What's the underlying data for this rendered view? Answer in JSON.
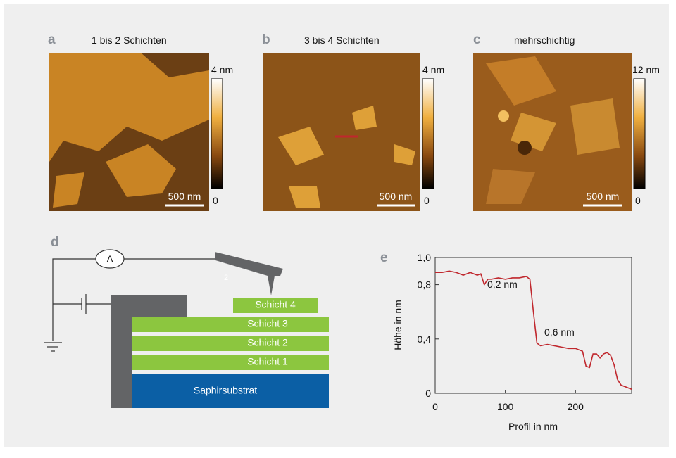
{
  "panels": [
    {
      "label": "a",
      "title": "1 bis 2 Schichten",
      "colorbar_max": "4 nm",
      "colorbar_min": "0",
      "scale_bar": "500 nm"
    },
    {
      "label": "b",
      "title": "3 bis 4 Schichten",
      "colorbar_max": "4 nm",
      "colorbar_min": "0",
      "scale_bar": "500 nm"
    },
    {
      "label": "c",
      "title": "mehrschichtig",
      "colorbar_max": "12 nm",
      "colorbar_min": "0",
      "scale_bar": "500 nm"
    }
  ],
  "diagram": {
    "label": "d",
    "ammeter": "A",
    "tip_label": "2",
    "layers": [
      "Schicht 4",
      "Schicht 3",
      "Schicht 2",
      "Schicht 1"
    ],
    "substrate": "Saphirsubstrat"
  },
  "chart_data": {
    "type": "line",
    "label": "e",
    "xlabel": "Profil in nm",
    "ylabel": "Höhe in nm",
    "x": [
      0,
      10,
      20,
      30,
      40,
      50,
      60,
      65,
      70,
      75,
      80,
      90,
      100,
      110,
      120,
      130,
      135,
      140,
      145,
      150,
      160,
      170,
      180,
      190,
      200,
      210,
      215,
      220,
      225,
      230,
      235,
      240,
      245,
      250,
      255,
      260,
      265,
      270,
      280
    ],
    "series": [
      {
        "color": "#c0272d",
        "values": [
          0.89,
          0.89,
          0.9,
          0.89,
          0.87,
          0.89,
          0.87,
          0.88,
          0.8,
          0.84,
          0.84,
          0.85,
          0.84,
          0.85,
          0.85,
          0.86,
          0.84,
          0.6,
          0.37,
          0.35,
          0.36,
          0.35,
          0.34,
          0.33,
          0.33,
          0.31,
          0.2,
          0.19,
          0.29,
          0.29,
          0.26,
          0.29,
          0.3,
          0.28,
          0.21,
          0.1,
          0.06,
          0.05,
          0.03
        ]
      }
    ],
    "xlim": [
      0,
      280
    ],
    "ylim": [
      0,
      1
    ],
    "xticks": [
      0,
      100,
      200
    ],
    "yticks": [
      {
        "value": 1,
        "label": "1,0"
      },
      {
        "value": 0.8,
        "label": "0,8"
      },
      {
        "value": 0.4,
        "label": "0,4"
      },
      0
    ],
    "annotations": [
      "0,2 nm",
      "0,6 nm"
    ]
  }
}
